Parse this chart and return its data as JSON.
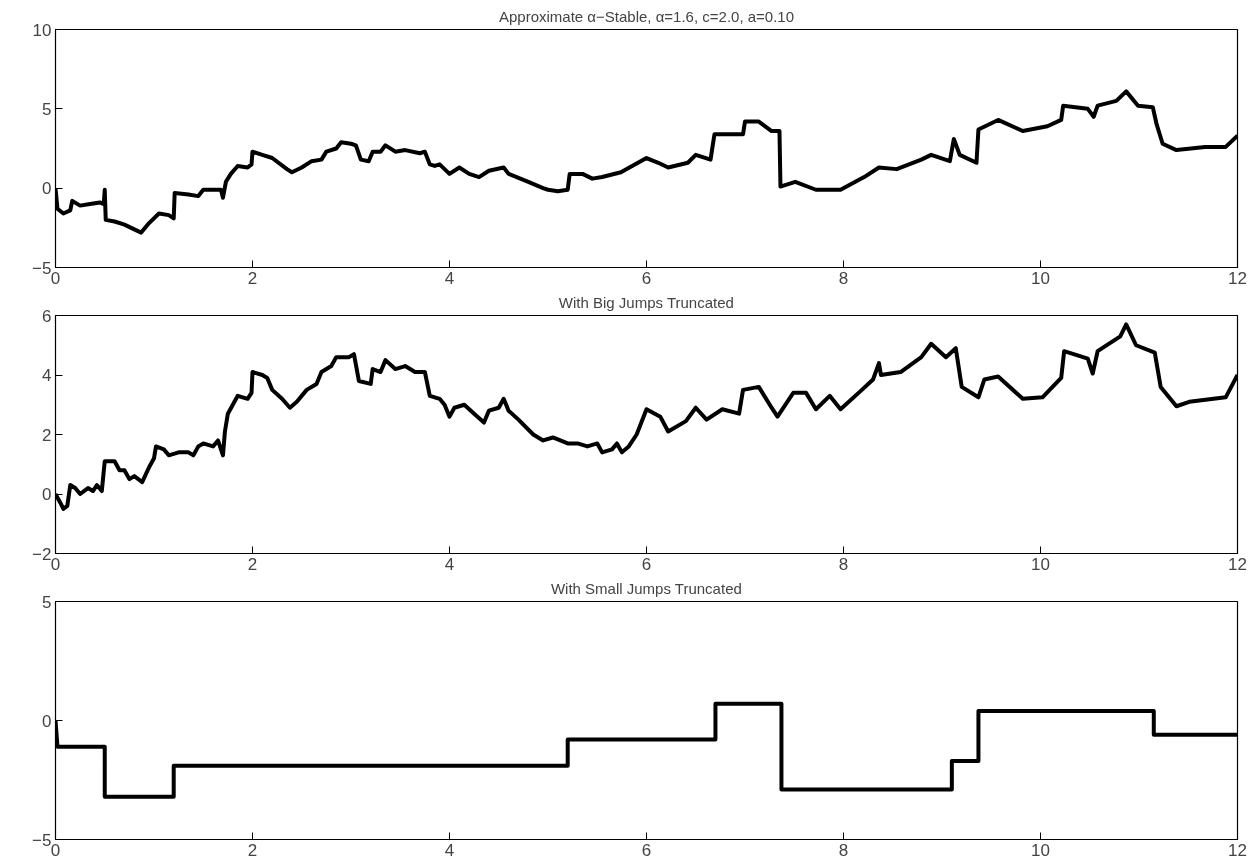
{
  "chart_data": [
    {
      "type": "line",
      "title": "Approximate α−Stable, α=1.6, c=2.0, a=0.10",
      "xlim": [
        0,
        12
      ],
      "ylim": [
        -5,
        10
      ],
      "xticks": [
        0,
        2,
        4,
        6,
        8,
        10,
        12
      ],
      "yticks": [
        -5,
        0,
        5,
        10
      ],
      "line_style": "solid",
      "series": [
        {
          "color": "#000000",
          "x": [
            0,
            0.02,
            0.08,
            0.15,
            0.17,
            0.25,
            0.35,
            0.45,
            0.49,
            0.5,
            0.51,
            0.6,
            0.7,
            0.8,
            0.87,
            0.95,
            1.05,
            1.15,
            1.2,
            1.21,
            1.35,
            1.45,
            1.5,
            1.6,
            1.68,
            1.7,
            1.73,
            1.78,
            1.85,
            1.95,
            1.99,
            2.0,
            2.1,
            2.2,
            2.35,
            2.4,
            2.5,
            2.6,
            2.7,
            2.75,
            2.85,
            2.9,
            3.0,
            3.05,
            3.1,
            3.18,
            3.22,
            3.3,
            3.35,
            3.45,
            3.55,
            3.7,
            3.75,
            3.8,
            3.85,
            3.9,
            4.0,
            4.1,
            4.2,
            4.3,
            4.4,
            4.55,
            4.6,
            4.8,
            4.95,
            5.0,
            5.1,
            5.2,
            5.22,
            5.35,
            5.45,
            5.55,
            5.74,
            6.0,
            6.12,
            6.22,
            6.42,
            6.5,
            6.65,
            6.69,
            6.98,
            7.0,
            7.14,
            7.27,
            7.35,
            7.36,
            7.51,
            7.72,
            7.97,
            8.21,
            8.36,
            8.54,
            8.79,
            8.89,
            9.08,
            9.12,
            9.18,
            9.35,
            9.37,
            9.57,
            9.82,
            10.07,
            10.21,
            10.23,
            10.48,
            10.54,
            10.58,
            10.77,
            10.87,
            10.99,
            11.14,
            11.18,
            11.24,
            11.38,
            11.67,
            11.88,
            12.0
          ],
          "values": [
            0,
            -1.3,
            -1.6,
            -1.4,
            -0.8,
            -1.1,
            -1.0,
            -0.9,
            -1.0,
            -0.1,
            -2.0,
            -2.1,
            -2.3,
            -2.6,
            -2.8,
            -2.2,
            -1.6,
            -1.7,
            -1.9,
            -0.3,
            -0.4,
            -0.5,
            -0.1,
            -0.1,
            -0.1,
            -0.6,
            0.4,
            0.9,
            1.4,
            1.3,
            1.5,
            2.3,
            2.1,
            1.9,
            1.2,
            1.0,
            1.3,
            1.7,
            1.8,
            2.3,
            2.5,
            2.9,
            2.8,
            2.7,
            1.8,
            1.7,
            2.3,
            2.3,
            2.7,
            2.3,
            2.4,
            2.2,
            2.3,
            1.5,
            1.4,
            1.5,
            0.9,
            1.3,
            0.9,
            0.7,
            1.1,
            1.3,
            0.9,
            0.4,
            0.0,
            -0.1,
            -0.2,
            -0.1,
            0.9,
            0.9,
            0.6,
            0.7,
            1.0,
            1.9,
            1.6,
            1.3,
            1.6,
            2.1,
            1.8,
            3.4,
            3.4,
            4.2,
            4.2,
            3.6,
            3.6,
            0.1,
            0.4,
            -0.1,
            -0.1,
            0.7,
            1.3,
            1.2,
            1.8,
            2.1,
            1.7,
            3.1,
            2.1,
            1.6,
            3.7,
            4.3,
            3.6,
            3.9,
            4.3,
            5.2,
            5.0,
            4.5,
            5.2,
            5.5,
            6.1,
            5.2,
            5.1,
            4.0,
            2.8,
            2.4,
            2.6,
            2.6,
            3.3
          ]
        }
      ]
    },
    {
      "type": "line",
      "title": "With Big Jumps Truncated",
      "xlim": [
        0,
        12
      ],
      "ylim": [
        -2,
        6
      ],
      "xticks": [
        0,
        2,
        4,
        6,
        8,
        10,
        12
      ],
      "yticks": [
        -2,
        0,
        2,
        4,
        6
      ],
      "line_style": "solid",
      "series": [
        {
          "color": "#000000",
          "x": [
            0,
            0.05,
            0.08,
            0.12,
            0.15,
            0.2,
            0.25,
            0.33,
            0.38,
            0.42,
            0.47,
            0.5,
            0.6,
            0.65,
            0.7,
            0.75,
            0.8,
            0.88,
            0.95,
            1.0,
            1.02,
            1.1,
            1.15,
            1.25,
            1.35,
            1.4,
            1.45,
            1.5,
            1.6,
            1.65,
            1.7,
            1.72,
            1.75,
            1.8,
            1.85,
            1.95,
            1.99,
            2.0,
            2.1,
            2.15,
            2.2,
            2.3,
            2.38,
            2.45,
            2.55,
            2.65,
            2.7,
            2.8,
            2.85,
            2.9,
            2.98,
            3.03,
            3.08,
            3.2,
            3.22,
            3.3,
            3.35,
            3.45,
            3.55,
            3.65,
            3.75,
            3.8,
            3.9,
            3.95,
            4.0,
            4.05,
            4.15,
            4.25,
            4.35,
            4.4,
            4.5,
            4.55,
            4.6,
            4.7,
            4.85,
            4.95,
            5.05,
            5.2,
            5.3,
            5.4,
            5.5,
            5.55,
            5.65,
            5.7,
            5.75,
            5.82,
            5.9,
            6.0,
            6.14,
            6.22,
            6.4,
            6.5,
            6.61,
            6.77,
            6.94,
            6.98,
            7.14,
            7.27,
            7.33,
            7.49,
            7.62,
            7.72,
            7.86,
            7.97,
            8.17,
            8.3,
            8.36,
            8.38,
            8.58,
            8.79,
            8.89,
            9.04,
            9.14,
            9.2,
            9.37,
            9.43,
            9.57,
            9.82,
            10.02,
            10.21,
            10.24,
            10.48,
            10.53,
            10.58,
            10.81,
            10.87,
            10.97,
            11.16,
            11.22,
            11.38,
            11.51,
            11.88,
            12.0
          ],
          "values": [
            0,
            -0.3,
            -0.5,
            -0.4,
            0.3,
            0.2,
            0.0,
            0.2,
            0.1,
            0.3,
            0.1,
            1.1,
            1.1,
            0.8,
            0.8,
            0.5,
            0.6,
            0.4,
            0.9,
            1.2,
            1.6,
            1.5,
            1.3,
            1.4,
            1.4,
            1.3,
            1.6,
            1.7,
            1.6,
            1.8,
            1.3,
            2.1,
            2.7,
            3.0,
            3.3,
            3.2,
            3.4,
            4.1,
            4.0,
            3.9,
            3.5,
            3.2,
            2.9,
            3.1,
            3.5,
            3.7,
            4.1,
            4.3,
            4.6,
            4.6,
            4.6,
            4.7,
            3.8,
            3.7,
            4.2,
            4.1,
            4.5,
            4.2,
            4.3,
            4.1,
            4.1,
            3.3,
            3.2,
            3.0,
            2.6,
            2.9,
            3.0,
            2.7,
            2.4,
            2.8,
            2.9,
            3.2,
            2.8,
            2.5,
            2.0,
            1.8,
            1.9,
            1.7,
            1.7,
            1.6,
            1.7,
            1.4,
            1.5,
            1.7,
            1.4,
            1.6,
            2.0,
            2.85,
            2.6,
            2.1,
            2.45,
            2.9,
            2.5,
            2.85,
            2.7,
            3.5,
            3.6,
            2.9,
            2.6,
            3.4,
            3.4,
            2.85,
            3.3,
            2.85,
            3.45,
            3.85,
            4.4,
            4.0,
            4.1,
            4.6,
            5.05,
            4.6,
            4.9,
            3.6,
            3.25,
            3.85,
            3.95,
            3.2,
            3.25,
            3.9,
            4.8,
            4.55,
            4.05,
            4.8,
            5.3,
            5.7,
            5.0,
            4.75,
            3.6,
            2.95,
            3.1,
            3.25,
            4.0
          ]
        }
      ]
    },
    {
      "type": "line",
      "title": "With Small Jumps Truncated",
      "xlim": [
        0,
        12
      ],
      "ylim": [
        -5,
        5
      ],
      "xticks": [
        0,
        2,
        4,
        6,
        8,
        10,
        12
      ],
      "yticks": [
        -5,
        0,
        5
      ],
      "line_style": "solid",
      "series": [
        {
          "color": "#000000",
          "x": [
            0,
            0.02,
            0.5,
            0.5,
            1.2,
            1.2,
            5.2,
            5.2,
            6.7,
            6.7,
            7.37,
            7.37,
            9.1,
            9.1,
            9.37,
            9.37,
            11.15,
            11.15,
            12
          ],
          "values": [
            0,
            -1.1,
            -1.1,
            -3.2,
            -3.2,
            -1.9,
            -1.9,
            -0.8,
            -0.8,
            0.7,
            0.7,
            -2.9,
            -2.9,
            -1.7,
            -1.7,
            0.4,
            0.4,
            -0.6,
            -0.6
          ]
        }
      ]
    }
  ]
}
